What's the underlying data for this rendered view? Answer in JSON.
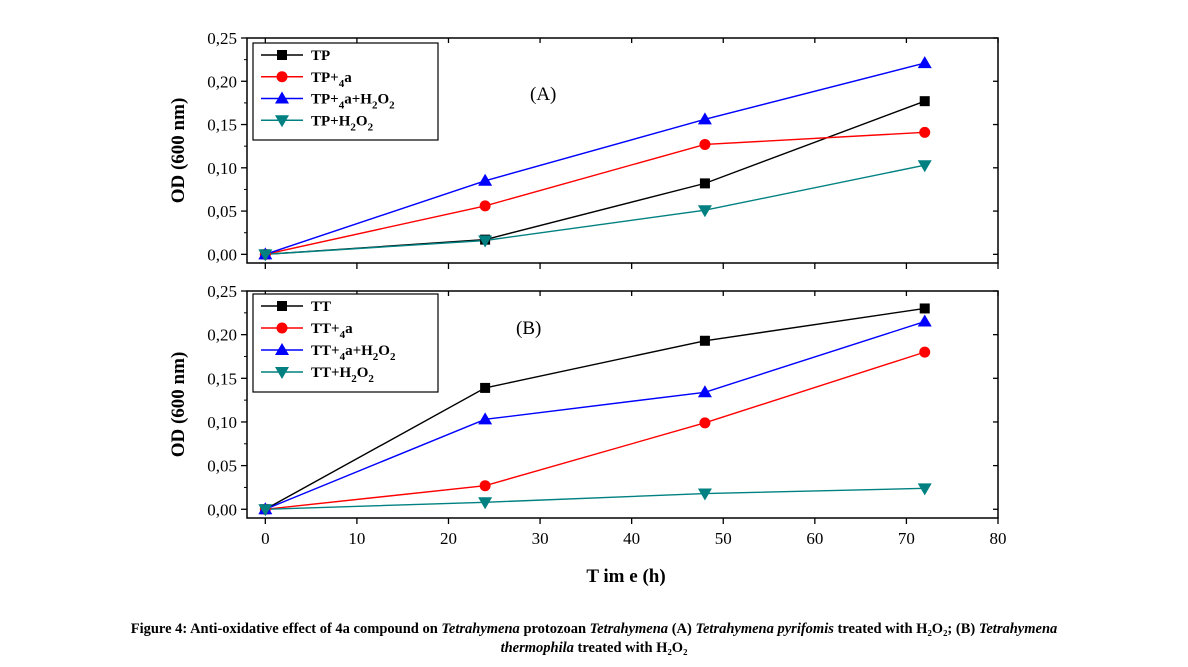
{
  "figure": {
    "xlabel": "T im e (h)",
    "xticks": [
      "0",
      "10",
      "20",
      "30",
      "40",
      "50",
      "60",
      "70",
      "80"
    ],
    "caption": {
      "line1": [
        {
          "text": "Figure 4: Anti-oxidative effect of 4a compound on ",
          "italic": false
        },
        {
          "text": "Tetrahymena",
          "italic": true
        },
        {
          "text": " protozoan ",
          "italic": false
        },
        {
          "text": "Tetrahymena",
          "italic": true
        },
        {
          "text": " (A) ",
          "italic": false
        },
        {
          "text": "Tetrahymena pyrifomis",
          "italic": true
        },
        {
          "text": " treated with H₂O₂; (B) ",
          "italic": false
        },
        {
          "text": "Tetrahymena",
          "italic": true
        }
      ],
      "line2": [
        {
          "text": "thermophila",
          "italic": true
        },
        {
          "text": " treated with H₂O₂",
          "italic": false
        }
      ]
    }
  },
  "chart_data": [
    {
      "type": "line",
      "panel_label": "(A)",
      "ylabel": "OD (600 nm)",
      "x": [
        0,
        24,
        48,
        72
      ],
      "xlim": [
        -2,
        80
      ],
      "ylim": [
        -0.01,
        0.25
      ],
      "yticks": [
        "0,00",
        "0,05",
        "0,10",
        "0,15",
        "0,20",
        "0,25"
      ],
      "legend_position": "top-left",
      "series": [
        {
          "name": "TP",
          "color": "#000000",
          "marker": "square",
          "values": [
            0.0,
            0.017,
            0.082,
            0.177
          ]
        },
        {
          "name": "TP+4a",
          "color": "#ff0000",
          "marker": "circle",
          "values": [
            0.0,
            0.056,
            0.127,
            0.141
          ]
        },
        {
          "name": "TP+4a+H2O2",
          "color": "#0000ff",
          "marker": "triangle-up",
          "values": [
            0.0,
            0.085,
            0.156,
            0.221
          ]
        },
        {
          "name": "TP+H2O2",
          "color": "#008080",
          "marker": "triangle-down",
          "values": [
            0.0,
            0.016,
            0.051,
            0.103
          ]
        }
      ]
    },
    {
      "type": "line",
      "panel_label": "(B)",
      "ylabel": "OD (600 nm)",
      "x": [
        0,
        24,
        48,
        72
      ],
      "xlim": [
        -2,
        80
      ],
      "ylim": [
        -0.01,
        0.25
      ],
      "yticks": [
        "0,00",
        "0,05",
        "0,10",
        "0,15",
        "0,20",
        "0,25"
      ],
      "legend_position": "top-left",
      "series": [
        {
          "name": "TT",
          "color": "#000000",
          "marker": "square",
          "values": [
            0.0,
            0.139,
            0.193,
            0.23
          ]
        },
        {
          "name": "TT+4a",
          "color": "#ff0000",
          "marker": "circle",
          "values": [
            0.0,
            0.027,
            0.099,
            0.18
          ]
        },
        {
          "name": "TT+4a+H2O2",
          "color": "#0000ff",
          "marker": "triangle-up",
          "values": [
            0.0,
            0.103,
            0.134,
            0.215
          ]
        },
        {
          "name": "TT+H2O2",
          "color": "#008080",
          "marker": "triangle-down",
          "values": [
            0.0,
            0.008,
            0.018,
            0.024
          ]
        }
      ]
    }
  ]
}
